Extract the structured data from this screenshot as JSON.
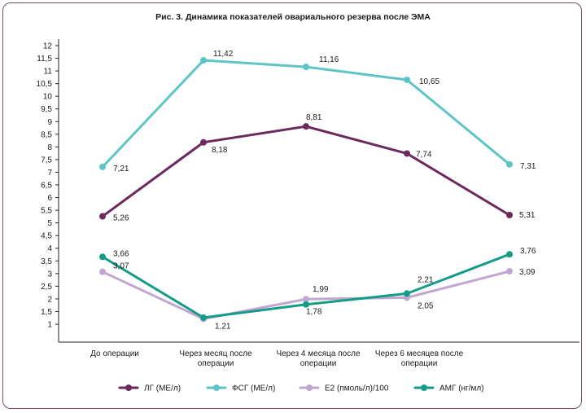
{
  "chart_data": {
    "type": "line",
    "title": "Рис. 3. Динамика показателей овариального резерва после ЭМА",
    "categories": [
      [
        "До операции"
      ],
      [
        "Через месяц после",
        "операции"
      ],
      [
        "Через 4 месяца после",
        "операции"
      ],
      [
        "Через 6 месяцев после",
        "операции"
      ]
    ],
    "yticks": [
      "1",
      "1,5",
      "2",
      "2,5",
      "3",
      "3,5",
      "4",
      "4,5",
      "5",
      "5,5",
      "6",
      "6,5",
      "7",
      "7,5",
      "8",
      "8,5",
      "9",
      "9,5",
      "10",
      "10,5",
      "11",
      "11,5",
      "12"
    ],
    "ylim": [
      0.5,
      12
    ],
    "series": [
      {
        "name": "ЛГ (МЕ/л)",
        "color": "#6b2a5e",
        "values": [
          5.26,
          8.18,
          8.81,
          7.74
        ],
        "labels": [
          "5,26",
          "8,18",
          "8,81",
          "7,74"
        ]
      },
      {
        "name": "ФСГ (МЕ/л)",
        "color": "#5ec4c6",
        "values": [
          7.21,
          11.42,
          11.16,
          10.65
        ],
        "labels": [
          "7,21",
          "11,42",
          "11,16",
          "10,65"
        ]
      },
      {
        "name": "E2 (пмоль/л)/100",
        "color": "#c0a6d0",
        "values": [
          3.07,
          1.21,
          1.99,
          2.05
        ],
        "labels": [
          "3,07",
          "1,21",
          "1,99",
          "2,05"
        ]
      },
      {
        "name": "АМГ (нг/мл)",
        "color": "#149c88",
        "values": [
          3.66,
          1.26,
          1.78,
          2.21
        ],
        "labels": [
          "3,66",
          "",
          "1,78",
          "2,21"
        ]
      }
    ],
    "series_tail": [
      {
        "values": [
          5.31
        ],
        "labels": [
          "5,31"
        ]
      },
      {
        "values": [
          7.31
        ],
        "labels": [
          "7,31"
        ]
      },
      {
        "values": [
          3.09
        ],
        "labels": [
          "3,09"
        ]
      },
      {
        "values": [
          3.76
        ],
        "labels": [
          "3,76"
        ]
      }
    ]
  }
}
